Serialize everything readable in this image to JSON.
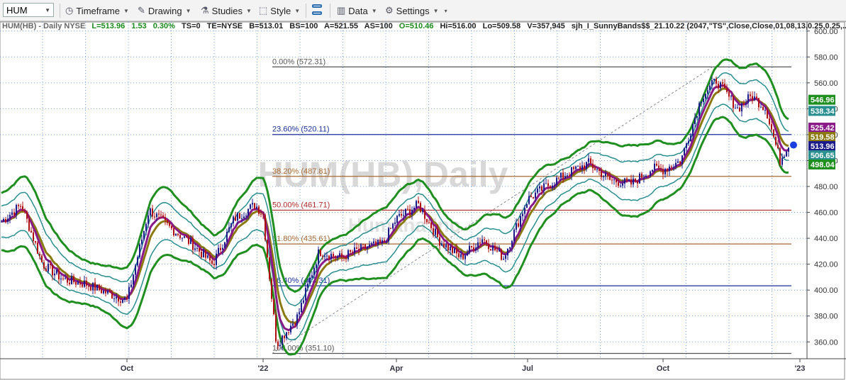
{
  "toolbar": {
    "symbol": "HUM",
    "timeframe": "Timeframe",
    "drawing": "Drawing",
    "studies": "Studies",
    "style": "Style",
    "data": "Data",
    "settings": "Settings"
  },
  "info_line": {
    "symbol_desc": "HUM(HB) - Daily  NYSE",
    "last": "L=513.96",
    "change": "1.53",
    "change_pct": "0.30%",
    "ts": "TS=0",
    "te": "TE=NYSE",
    "bid": "B=513.01",
    "bid_size": "BS=100",
    "ask": "A=521.55",
    "ask_size": "AS=100",
    "open": "O=510.46",
    "high": "Hi=516.00",
    "low": "Lo=509.58",
    "volume": "V=357,945",
    "study": "sjh_I_SunnyBands$$_21.10.22 (2047,\"TS\",Close,Close,01,08,13,0.25,0.25,..."
  },
  "colors": {
    "price_up": "#1a1a8a",
    "price_down": "#b01010",
    "outer_band": "#1f8f1f",
    "inner_band": "#2a8f8f",
    "mid_fast": "#8a1a8a",
    "mid_slow": "#8a7a10",
    "grid": "#5b8fd0",
    "fib_gray": "#555555",
    "fib_blue": "#1a2f9a",
    "fib_brown": "#a86a30",
    "fib_red": "#b02a2a",
    "last_dot": "#1a3fe0"
  },
  "chart_data": {
    "type": "line",
    "title": "HUM(HB),Daily",
    "watermark": "HUM(HB),Daily",
    "watermark_sub": "Humana Inc",
    "ylim": [
      347,
      607
    ],
    "y_ticks": [
      "600.00",
      "580.00",
      "560.00",
      "540.00",
      "520.00",
      "500.00",
      "480.00",
      "460.00",
      "440.00",
      "420.00",
      "400.00",
      "380.00",
      "360.00"
    ],
    "x_labels": [
      "Oct",
      "'22",
      "Apr",
      "Jul",
      "Oct",
      "'23"
    ],
    "x_label_positions": [
      179,
      371,
      559,
      744,
      935,
      1128
    ],
    "price_series": {
      "name": "HUM",
      "x": [
        0,
        30,
        60,
        90,
        120,
        150,
        179,
        210,
        240,
        270,
        300,
        330,
        360,
        371,
        390,
        420,
        450,
        480,
        510,
        540,
        559,
        590,
        620,
        650,
        680,
        710,
        744,
        770,
        800,
        830,
        860,
        890,
        920,
        935,
        960,
        990,
        1010,
        1040,
        1060,
        1080,
        1100,
        1113
      ],
      "values": [
        452,
        466,
        420,
        408,
        405,
        398,
        392,
        462,
        448,
        436,
        420,
        455,
        466,
        458,
        358,
        380,
        430,
        425,
        432,
        436,
        455,
        466,
        438,
        425,
        440,
        425,
        470,
        480,
        490,
        498,
        485,
        482,
        494,
        493,
        500,
        550,
        562,
        540,
        550,
        540,
        500,
        514
      ]
    },
    "fibonacci": [
      {
        "label": "0.00% (572.31)",
        "value": 572.31,
        "color": "#555555"
      },
      {
        "label": "23.60% (520.11)",
        "value": 520.11,
        "color": "#1a2f9a"
      },
      {
        "label": "38.20% (487.81)",
        "value": 487.81,
        "color": "#a86a30"
      },
      {
        "label": "50.00% (461.71)",
        "value": 461.71,
        "color": "#b02a2a"
      },
      {
        "label": "61.80% (435.61)",
        "value": 435.61,
        "color": "#a86a30"
      },
      {
        "label": "76.40% (403.31)",
        "value": 403.31,
        "color": "#1a2f9a"
      },
      {
        "label": "100.00% (351.10)",
        "value": 351.1,
        "color": "#555555"
      }
    ],
    "price_tags": [
      {
        "text": "546.96",
        "value": 546.96,
        "color": "#1f8f1f"
      },
      {
        "text": "538.34",
        "value": 538.34,
        "color": "#2a8f8f"
      },
      {
        "text": "525.42",
        "value": 525.42,
        "color": "#8a1a8a"
      },
      {
        "text": "519.58",
        "value": 519.58,
        "color": "#8a7a10"
      },
      {
        "text": "513.96",
        "value": 513.96,
        "color": "#1a1a8a"
      },
      {
        "text": "506.65",
        "value": 506.65,
        "color": "#2a8f8f"
      },
      {
        "text": "498.04",
        "value": 498.04,
        "color": "#1f8f1f"
      }
    ]
  }
}
